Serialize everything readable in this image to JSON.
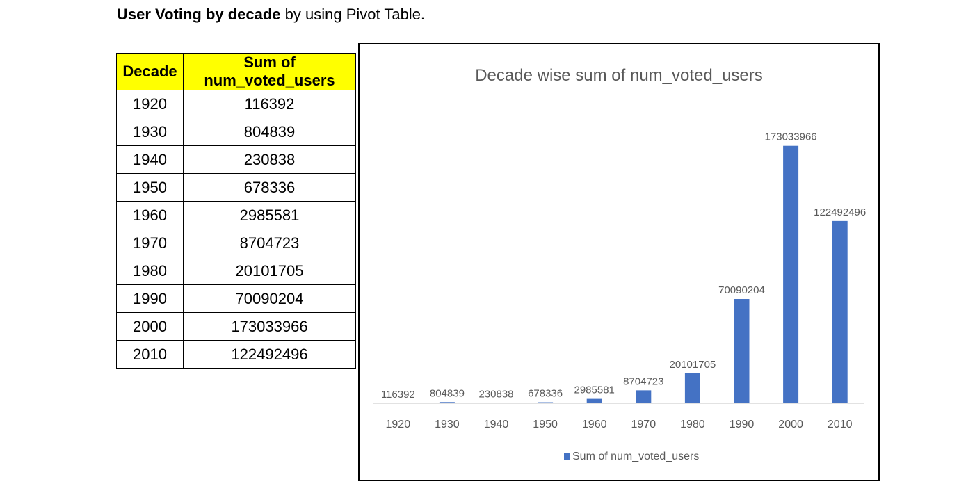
{
  "heading": {
    "bold": "User Voting by decade",
    "rest": " by using Pivot Table."
  },
  "table": {
    "headers": [
      "Decade",
      "Sum of num_voted_users"
    ],
    "header_bg": "#ffff00",
    "rows": [
      [
        "1920",
        "116392"
      ],
      [
        "1930",
        "804839"
      ],
      [
        "1940",
        "230838"
      ],
      [
        "1950",
        "678336"
      ],
      [
        "1960",
        "2985581"
      ],
      [
        "1970",
        "8704723"
      ],
      [
        "1980",
        "20101705"
      ],
      [
        "1990",
        "70090204"
      ],
      [
        "2000",
        "173033966"
      ],
      [
        "2010",
        "122492496"
      ]
    ]
  },
  "chart_data": {
    "type": "bar",
    "title": "Decade wise sum of num_voted_users",
    "categories": [
      "1920",
      "1930",
      "1940",
      "1950",
      "1960",
      "1970",
      "1980",
      "1990",
      "2000",
      "2010"
    ],
    "series": [
      {
        "name": "Sum of num_voted_users",
        "color": "#4472c4",
        "values": [
          116392,
          804839,
          230838,
          678336,
          2985581,
          8704723,
          20101705,
          70090204,
          173033966,
          122492496
        ]
      }
    ],
    "ylim": [
      0,
      200000000
    ],
    "grid": false,
    "legend": "bottom",
    "data_labels": true
  }
}
